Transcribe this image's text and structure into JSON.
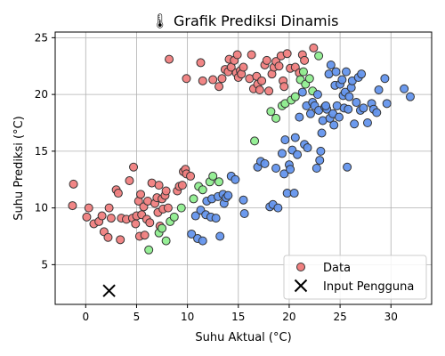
{
  "chart_data": {
    "type": "scatter",
    "title": "🌡 Grafik Prediksi Dinamis",
    "xlabel": "Suhu Aktual (°C)",
    "ylabel": "Suhu Prediksi (°C)",
    "xlim": [
      -3,
      34
    ],
    "ylim": [
      1.5,
      25.5
    ],
    "xticks": [
      0,
      5,
      10,
      15,
      20,
      25,
      30
    ],
    "yticks": [
      5,
      10,
      15,
      20,
      25
    ],
    "grid": true,
    "legend_position": "bottom-right",
    "legend": [
      {
        "label": "Data",
        "marker": "circle"
      },
      {
        "label": "Input Pengguna",
        "marker": "x"
      }
    ],
    "colors": {
      "red": "#f08080",
      "green": "#90ee90",
      "blue": "#6495ed",
      "marker_edge": "#333333",
      "legend_marker": "#f08080",
      "user_input": "#000000"
    },
    "series": [
      {
        "color": "red",
        "points": [
          [
            -1.2,
            12.1
          ],
          [
            -1.3,
            10.2
          ],
          [
            0.1,
            9.2
          ],
          [
            0.3,
            10.0
          ],
          [
            0.8,
            8.6
          ],
          [
            1.3,
            8.8
          ],
          [
            1.6,
            9.3
          ],
          [
            1.8,
            7.9
          ],
          [
            2.2,
            7.4
          ],
          [
            2.3,
            10.0
          ],
          [
            2.5,
            9.1
          ],
          [
            3.0,
            11.6
          ],
          [
            3.2,
            11.3
          ],
          [
            3.4,
            7.2
          ],
          [
            3.5,
            9.1
          ],
          [
            4.0,
            9.0
          ],
          [
            4.3,
            12.4
          ],
          [
            4.6,
            9.1
          ],
          [
            4.7,
            13.6
          ],
          [
            4.9,
            8.6
          ],
          [
            5.0,
            9.3
          ],
          [
            5.2,
            10.6
          ],
          [
            5.3,
            7.5
          ],
          [
            5.4,
            11.2
          ],
          [
            5.5,
            9.4
          ],
          [
            5.7,
            10.1
          ],
          [
            5.8,
            7.6
          ],
          [
            6.0,
            9.0
          ],
          [
            6.1,
            10.6
          ],
          [
            6.3,
            8.7
          ],
          [
            6.5,
            12.2
          ],
          [
            6.8,
            10.4
          ],
          [
            7.0,
            10.9
          ],
          [
            7.1,
            9.6
          ],
          [
            7.2,
            12.0
          ],
          [
            7.3,
            8.4
          ],
          [
            7.5,
            10.8
          ],
          [
            7.6,
            9.9
          ],
          [
            7.8,
            11.1
          ],
          [
            7.9,
            11.5
          ],
          [
            8.1,
            10.0
          ],
          [
            9.0,
            11.5
          ],
          [
            9.2,
            11.9
          ],
          [
            9.5,
            12.0
          ],
          [
            9.6,
            13.2
          ],
          [
            9.8,
            13.4
          ],
          [
            9.9,
            13.0
          ],
          [
            10.3,
            12.8
          ],
          [
            8.2,
            23.1
          ],
          [
            9.9,
            21.4
          ],
          [
            11.3,
            22.8
          ],
          [
            11.5,
            21.2
          ],
          [
            12.5,
            21.3
          ],
          [
            13.1,
            20.7
          ],
          [
            13.4,
            21.4
          ],
          [
            13.7,
            22.2
          ],
          [
            14.0,
            22.0
          ],
          [
            14.1,
            23.1
          ],
          [
            14.3,
            22.4
          ],
          [
            14.6,
            23.0
          ],
          [
            14.8,
            21.9
          ],
          [
            15.0,
            21.5
          ],
          [
            15.2,
            22.1
          ],
          [
            15.3,
            21.8
          ],
          [
            16.1,
            21.4
          ],
          [
            16.3,
            23.5
          ],
          [
            16.5,
            20.5
          ],
          [
            16.8,
            21.6
          ],
          [
            16.9,
            20.9
          ],
          [
            17.1,
            20.4
          ],
          [
            17.3,
            21.2
          ],
          [
            17.6,
            22.6
          ],
          [
            17.8,
            23.0
          ],
          [
            18.0,
            20.3
          ],
          [
            18.3,
            21.8
          ],
          [
            18.5,
            22.4
          ],
          [
            18.7,
            22.9
          ],
          [
            19.0,
            22.5
          ],
          [
            19.2,
            23.4
          ],
          [
            19.4,
            21.2
          ],
          [
            19.5,
            20.7
          ],
          [
            19.8,
            23.6
          ],
          [
            20.1,
            22.3
          ],
          [
            20.6,
            22.4
          ],
          [
            21.0,
            21.9
          ],
          [
            21.3,
            23.5
          ],
          [
            21.5,
            23.0
          ],
          [
            22.4,
            24.1
          ],
          [
            14.9,
            23.5
          ],
          [
            15.5,
            22.4
          ]
        ]
      },
      {
        "color": "green",
        "points": [
          [
            6.2,
            6.3
          ],
          [
            7.2,
            7.8
          ],
          [
            7.5,
            8.2
          ],
          [
            7.9,
            7.1
          ],
          [
            8.3,
            8.8
          ],
          [
            8.7,
            9.2
          ],
          [
            9.4,
            10.0
          ],
          [
            10.6,
            10.8
          ],
          [
            11.1,
            11.9
          ],
          [
            11.5,
            11.6
          ],
          [
            12.2,
            12.3
          ],
          [
            12.5,
            12.8
          ],
          [
            13.1,
            12.3
          ],
          [
            16.6,
            15.9
          ],
          [
            18.2,
            18.5
          ],
          [
            18.7,
            17.9
          ],
          [
            19.3,
            19.0
          ],
          [
            19.6,
            19.2
          ],
          [
            20.2,
            19.5
          ],
          [
            20.6,
            19.8
          ],
          [
            21.1,
            21.3
          ],
          [
            21.4,
            22.0
          ],
          [
            21.6,
            20.9
          ],
          [
            22.0,
            21.4
          ],
          [
            22.3,
            20.3
          ],
          [
            22.9,
            23.4
          ]
        ]
      },
      {
        "color": "blue",
        "points": [
          [
            10.4,
            7.7
          ],
          [
            10.8,
            9.3
          ],
          [
            11.0,
            7.3
          ],
          [
            11.3,
            9.8
          ],
          [
            11.5,
            7.1
          ],
          [
            11.8,
            9.4
          ],
          [
            11.9,
            10.6
          ],
          [
            12.3,
            9.2
          ],
          [
            12.4,
            10.8
          ],
          [
            12.8,
            9.1
          ],
          [
            13.0,
            11.0
          ],
          [
            13.2,
            7.5
          ],
          [
            13.5,
            11.2
          ],
          [
            13.6,
            10.4
          ],
          [
            13.8,
            10.9
          ],
          [
            14.0,
            11.1
          ],
          [
            14.3,
            12.8
          ],
          [
            14.7,
            12.5
          ],
          [
            15.5,
            10.7
          ],
          [
            15.6,
            9.5
          ],
          [
            16.9,
            13.6
          ],
          [
            17.2,
            14.1
          ],
          [
            17.6,
            13.9
          ],
          [
            18.1,
            10.1
          ],
          [
            18.4,
            10.3
          ],
          [
            18.7,
            13.5
          ],
          [
            18.9,
            10.0
          ],
          [
            19.3,
            14.8
          ],
          [
            19.5,
            13.0
          ],
          [
            19.6,
            16.0
          ],
          [
            19.8,
            11.3
          ],
          [
            20.0,
            13.8
          ],
          [
            20.1,
            13.4
          ],
          [
            20.3,
            15.1
          ],
          [
            20.5,
            11.3
          ],
          [
            20.6,
            16.2
          ],
          [
            20.8,
            14.7
          ],
          [
            21.0,
            18.0
          ],
          [
            21.3,
            20.2
          ],
          [
            21.5,
            15.6
          ],
          [
            21.7,
            19.0
          ],
          [
            21.8,
            15.3
          ],
          [
            22.1,
            18.3
          ],
          [
            22.3,
            19.3
          ],
          [
            22.5,
            19.0
          ],
          [
            22.7,
            13.5
          ],
          [
            22.9,
            18.6
          ],
          [
            23.0,
            14.2
          ],
          [
            23.1,
            15.0
          ],
          [
            23.2,
            16.6
          ],
          [
            23.3,
            17.7
          ],
          [
            23.5,
            18.9
          ],
          [
            23.7,
            18.7
          ],
          [
            23.9,
            21.8
          ],
          [
            24.0,
            17.9
          ],
          [
            24.1,
            22.6
          ],
          [
            24.3,
            18.3
          ],
          [
            24.4,
            17.3
          ],
          [
            24.5,
            20.8
          ],
          [
            24.6,
            22.0
          ],
          [
            24.7,
            19.0
          ],
          [
            24.9,
            18.0
          ],
          [
            25.0,
            20.9
          ],
          [
            25.2,
            21.3
          ],
          [
            25.3,
            19.9
          ],
          [
            25.4,
            18.8
          ],
          [
            25.5,
            20.2
          ],
          [
            25.6,
            22.0
          ],
          [
            25.7,
            13.6
          ],
          [
            25.8,
            18.7
          ],
          [
            25.9,
            19.8
          ],
          [
            26.1,
            20.6
          ],
          [
            26.2,
            21.2
          ],
          [
            26.4,
            17.4
          ],
          [
            26.6,
            19.3
          ],
          [
            26.8,
            21.5
          ],
          [
            27.0,
            18.6
          ],
          [
            27.1,
            21.8
          ],
          [
            27.3,
            18.8
          ],
          [
            27.7,
            17.5
          ],
          [
            28.1,
            19.2
          ],
          [
            28.3,
            18.7
          ],
          [
            28.6,
            18.4
          ],
          [
            28.8,
            20.4
          ],
          [
            29.4,
            21.4
          ],
          [
            29.6,
            19.2
          ],
          [
            31.3,
            20.5
          ],
          [
            31.9,
            19.8
          ],
          [
            22.8,
            20.0
          ],
          [
            23.6,
            19.0
          ]
        ]
      }
    ],
    "user_input": {
      "label": "Input Pengguna",
      "x": 2.3,
      "y": 2.7
    }
  }
}
